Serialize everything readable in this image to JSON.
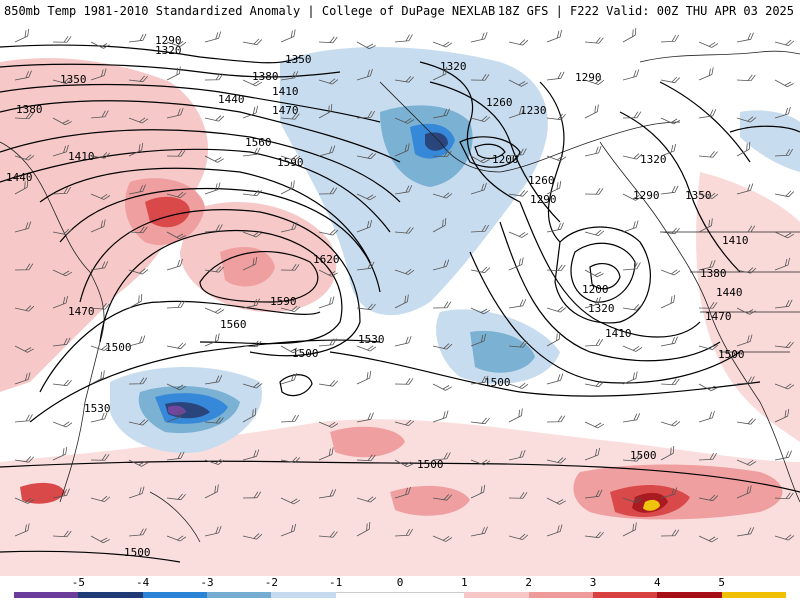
{
  "header": {
    "title": "850mb Temp 1981-2010 Standardized Anomaly | College of DuPage NEXLAB",
    "model_info": "18Z GFS | F222 Valid: 00Z THU APR 03 2025"
  },
  "colors": {
    "deep_purple": "#6a3d9a",
    "dark_blue": "#1f3a75",
    "blue": "#2b83d6",
    "light_blue": "#74add1",
    "pale_blue": "#c6dbef",
    "white": "#ffffff",
    "pale_red": "#f7c6c6",
    "light_red": "#ef9a9a",
    "red": "#d94040",
    "dark_red": "#a50f15",
    "yellow": "#f0c000"
  },
  "colorbar": {
    "ticks": [
      "-5",
      "-4",
      "-3",
      "-2",
      "-1",
      "0",
      "1",
      "2",
      "3",
      "4",
      "5"
    ],
    "segments": [
      "#6a3d9a",
      "#1f3a75",
      "#2b83d6",
      "#74add1",
      "#c6dbef",
      "#ffffff",
      "#ffffff",
      "#f7c6c6",
      "#ef9a9a",
      "#d94040",
      "#a50f15",
      "#f0c000"
    ]
  },
  "contours": {
    "labels": [
      {
        "text": "1290"
      },
      {
        "text": "1320"
      },
      {
        "text": "1350"
      },
      {
        "text": "1380"
      },
      {
        "text": "1410"
      },
      {
        "text": "1440"
      },
      {
        "text": "1470"
      },
      {
        "text": "1500"
      },
      {
        "text": "1530"
      },
      {
        "text": "1560"
      },
      {
        "text": "1590"
      },
      {
        "text": "1620"
      },
      {
        "text": "1350"
      },
      {
        "text": "1380"
      },
      {
        "text": "1410"
      },
      {
        "text": "1440"
      },
      {
        "text": "1470"
      },
      {
        "text": "1530"
      },
      {
        "text": "1560"
      },
      {
        "text": "1590"
      },
      {
        "text": "1320"
      },
      {
        "text": "1260"
      },
      {
        "text": "1230"
      },
      {
        "text": "1200"
      },
      {
        "text": "1260"
      },
      {
        "text": "1290"
      },
      {
        "text": "1290"
      },
      {
        "text": "1320"
      },
      {
        "text": "1290"
      },
      {
        "text": "1350"
      },
      {
        "text": "1410"
      },
      {
        "text": "1380"
      },
      {
        "text": "1440"
      },
      {
        "text": "1470"
      },
      {
        "text": "1200"
      },
      {
        "text": "1320"
      },
      {
        "text": "1410"
      },
      {
        "text": "1500"
      },
      {
        "text": "1500"
      },
      {
        "text": "1500"
      },
      {
        "text": "1500"
      },
      {
        "text": "1500"
      },
      {
        "text": "1500"
      }
    ]
  }
}
